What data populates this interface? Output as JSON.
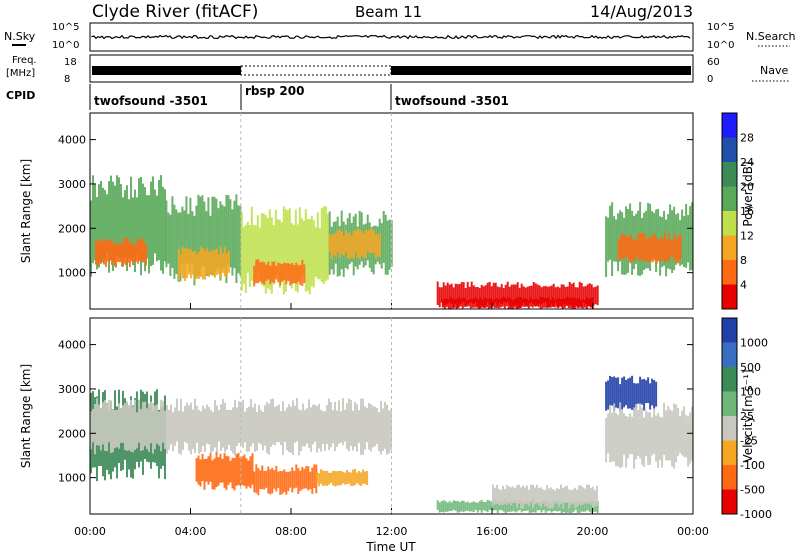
{
  "header": {
    "station": "Clyde River (fitACF)",
    "beam": "Beam 11",
    "date": "14/Aug/2013"
  },
  "status_panels": {
    "nsky_label": "N.Sky",
    "nsky_ticks": [
      "10^5",
      "10^0"
    ],
    "nsearch_label": "N.Search",
    "nsearch_ticks": [
      "10^5",
      "10^0"
    ],
    "freq_label_1": "Freq.",
    "freq_label_2": "[MHz]",
    "freq_ticks": [
      "18",
      "8"
    ],
    "nave_label": "Nave",
    "nave_ticks": [
      "60",
      "0"
    ],
    "cpid_label": "CPID",
    "cpid_segments": [
      {
        "name": "twofsound -3501",
        "start_hour": 0,
        "end_hour": 6
      },
      {
        "name": "rbsp 200",
        "start_hour": 6,
        "end_hour": 12
      },
      {
        "name": "twofsound -3501",
        "start_hour": 12,
        "end_hour": 24
      }
    ]
  },
  "chart_data": [
    {
      "type": "heatmap",
      "title": "",
      "xlabel": "Time UT",
      "ylabel": "Slant Range [km]",
      "x_ticks": [
        "00:00",
        "04:00",
        "08:00",
        "12:00",
        "16:00",
        "20:00",
        "00:00"
      ],
      "xlim_hours": [
        0,
        24
      ],
      "ylim": [
        180,
        4600
      ],
      "y_ticks": [
        1000,
        2000,
        3000,
        4000
      ],
      "colorbar": {
        "label": "Power [dB]",
        "ticks": [
          "28",
          "24",
          "20",
          "16",
          "12",
          "8",
          "4"
        ],
        "colors": [
          "#1c1cff",
          "#1f4fa8",
          "#3c8a56",
          "#5aa85a",
          "#bfe04a",
          "#f5a623",
          "#ff6a14",
          "#e80000"
        ]
      },
      "echo_regions": [
        {
          "t0": 0.0,
          "t1": 3.0,
          "r0": 900,
          "r1": 3200,
          "level": 3
        },
        {
          "t0": 0.2,
          "t1": 2.2,
          "r0": 1100,
          "r1": 1800,
          "level": 6
        },
        {
          "t0": 3.0,
          "t1": 6.0,
          "r0": 700,
          "r1": 2800,
          "level": 3
        },
        {
          "t0": 3.5,
          "t1": 5.5,
          "r0": 800,
          "r1": 1600,
          "level": 5
        },
        {
          "t0": 6.0,
          "t1": 9.5,
          "r0": 500,
          "r1": 2500,
          "level": 4
        },
        {
          "t0": 6.5,
          "t1": 8.5,
          "r0": 700,
          "r1": 1300,
          "level": 6
        },
        {
          "t0": 9.5,
          "t1": 12.0,
          "r0": 900,
          "r1": 2400,
          "level": 3
        },
        {
          "t0": 9.5,
          "t1": 11.5,
          "r0": 1300,
          "r1": 2000,
          "level": 5
        },
        {
          "t0": 13.8,
          "t1": 20.2,
          "r0": 200,
          "r1": 800,
          "level": 7
        },
        {
          "t0": 14.0,
          "t1": 20.0,
          "r0": 180,
          "r1": 450,
          "level": 7
        },
        {
          "t0": 20.5,
          "t1": 24.0,
          "r0": 900,
          "r1": 2600,
          "level": 3
        },
        {
          "t0": 21.0,
          "t1": 23.5,
          "r0": 1200,
          "r1": 1900,
          "level": 6
        }
      ]
    },
    {
      "type": "heatmap",
      "title": "",
      "xlabel": "Time UT",
      "ylabel": "Slant Range [km]",
      "x_ticks": [
        "00:00",
        "04:00",
        "08:00",
        "12:00",
        "16:00",
        "20:00",
        "00:00"
      ],
      "xlim_hours": [
        0,
        24
      ],
      "ylim": [
        180,
        4600
      ],
      "y_ticks": [
        1000,
        2000,
        3000,
        4000
      ],
      "colorbar": {
        "label": "Velocity [m s⁻¹]",
        "ticks": [
          "1000",
          "500",
          "100",
          "25",
          "-25",
          "-100",
          "-500",
          "-1000"
        ],
        "colors": [
          "#2040a8",
          "#3a6ec0",
          "#3c8a56",
          "#6fb87a",
          "#c8c8c0",
          "#f5a623",
          "#ff6a14",
          "#e80000"
        ]
      },
      "echo_regions": [
        {
          "t0": 0.0,
          "t1": 3.0,
          "r0": 900,
          "r1": 3000,
          "level": 2
        },
        {
          "t0": 0.0,
          "t1": 12.0,
          "r0": 1500,
          "r1": 2800,
          "level": 4
        },
        {
          "t0": 4.2,
          "t1": 6.5,
          "r0": 700,
          "r1": 1600,
          "level": 6
        },
        {
          "t0": 6.5,
          "t1": 9.0,
          "r0": 600,
          "r1": 1300,
          "level": 6
        },
        {
          "t0": 9.0,
          "t1": 11.0,
          "r0": 800,
          "r1": 1200,
          "level": 5
        },
        {
          "t0": 13.8,
          "t1": 20.2,
          "r0": 200,
          "r1": 500,
          "level": 3
        },
        {
          "t0": 16.0,
          "t1": 20.2,
          "r0": 300,
          "r1": 850,
          "level": 4
        },
        {
          "t0": 20.5,
          "t1": 22.5,
          "r0": 2500,
          "r1": 3300,
          "level": 0
        },
        {
          "t0": 20.5,
          "t1": 24.0,
          "r0": 1200,
          "r1": 2700,
          "level": 4
        }
      ]
    }
  ]
}
